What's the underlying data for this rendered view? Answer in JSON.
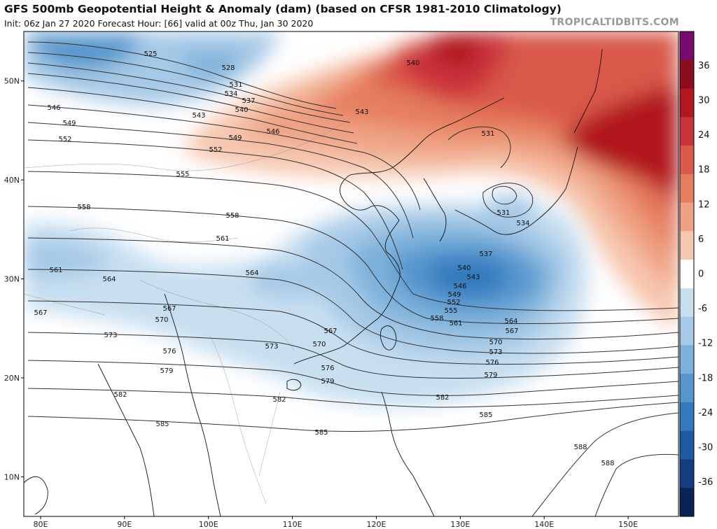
{
  "header": {
    "title": "GFS 500mb Geopotential Height & Anomaly (dam) (based on CFSR 1981-2010 Climatology)",
    "subtitle": "Init: 06z Jan 27 2020   Forecast Hour: [66]   valid at 00z Thu, Jan 30 2020",
    "brand": "TROPICALTIDBITS.COM"
  },
  "map": {
    "lon_range": [
      78,
      156
    ],
    "lat_range": [
      6,
      55
    ],
    "lat_labels": [
      "10N",
      "20N",
      "30N",
      "40N",
      "50N"
    ],
    "lon_labels": [
      "80E",
      "90E",
      "100E",
      "110E",
      "120E",
      "130E",
      "140E",
      "150E"
    ],
    "contour_labels": [
      "525",
      "528",
      "531",
      "534",
      "537",
      "540",
      "543",
      "546",
      "549",
      "552",
      "555",
      "558",
      "561",
      "564",
      "567",
      "570",
      "573",
      "576",
      "579",
      "582",
      "585",
      "588"
    ],
    "colorbar": {
      "ticks": [
        "36",
        "30",
        "24",
        "18",
        "12",
        "6",
        "0",
        "-6",
        "-12",
        "-18",
        "-24",
        "-30",
        "-36"
      ],
      "colors": [
        "#7a0a6e",
        "#8a0d1e",
        "#b0171f",
        "#c9333a",
        "#d9594a",
        "#e57e5e",
        "#efa283",
        "#f6c6ae",
        "#ffffff",
        "#c8dff0",
        "#a5c9e6",
        "#7db1da",
        "#5496cd",
        "#3279bd",
        "#1d5aa3",
        "#133d80",
        "#0b2458"
      ]
    }
  }
}
